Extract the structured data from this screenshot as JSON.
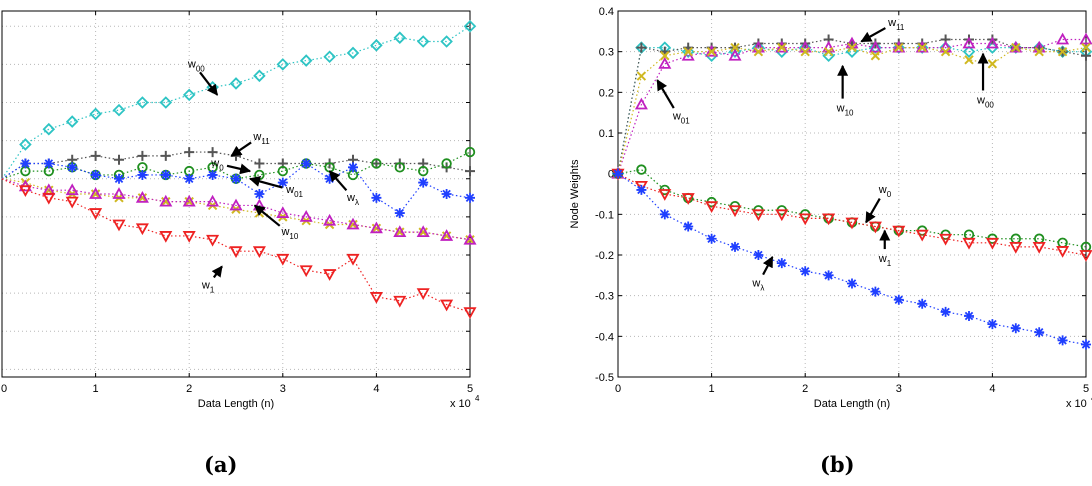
{
  "captions": [
    "(a)",
    "(b)"
  ],
  "colors": {
    "w00": "#2ec4c4",
    "w11": "#555555",
    "w0": "#1f8f1f",
    "w01": "#d0b820",
    "w10": "#c020c0",
    "wlambda": "#1f3fff",
    "w1": "#ee2222"
  },
  "chart_data": [
    {
      "type": "scatter",
      "xlabel": "Data Length (n)",
      "x_exponent": "x 10",
      "x_exponent_power": "4",
      "xlim": [
        0,
        5
      ],
      "xticks": [
        0,
        1,
        2,
        3,
        4,
        5
      ],
      "ylim": [
        -0.52,
        0.44
      ],
      "grid": true,
      "x": [
        0,
        0.25,
        0.5,
        0.75,
        1,
        1.25,
        1.5,
        1.75,
        2,
        2.25,
        2.5,
        2.75,
        3,
        3.25,
        3.5,
        3.75,
        4,
        4.25,
        4.5,
        4.75,
        5
      ],
      "series": [
        {
          "key": "w00",
          "marker": "diamond",
          "values": [
            0.0,
            0.09,
            0.13,
            0.15,
            0.17,
            0.18,
            0.2,
            0.2,
            0.22,
            0.24,
            0.25,
            0.27,
            0.3,
            0.31,
            0.32,
            0.33,
            0.35,
            0.37,
            0.36,
            0.36,
            0.4
          ]
        },
        {
          "key": "w11",
          "marker": "plus",
          "values": [
            0.0,
            0.04,
            0.04,
            0.05,
            0.06,
            0.05,
            0.06,
            0.06,
            0.07,
            0.07,
            0.06,
            0.04,
            0.04,
            0.04,
            0.04,
            0.05,
            0.04,
            0.04,
            0.04,
            0.03,
            0.02
          ]
        },
        {
          "key": "w0",
          "marker": "circle",
          "values": [
            0.0,
            0.02,
            0.02,
            0.03,
            0.01,
            0.01,
            0.03,
            0.01,
            0.02,
            0.03,
            0.0,
            0.01,
            0.02,
            0.04,
            0.03,
            0.01,
            0.04,
            0.03,
            0.02,
            0.04,
            0.07
          ]
        },
        {
          "key": "wlambda",
          "marker": "asterisk",
          "values": [
            0.0,
            0.04,
            0.04,
            0.03,
            0.01,
            0.0,
            0.01,
            0.01,
            0.0,
            0.01,
            0.0,
            -0.04,
            -0.01,
            0.04,
            0.0,
            0.03,
            -0.05,
            -0.09,
            -0.01,
            -0.04,
            -0.05
          ]
        },
        {
          "key": "w01",
          "marker": "x",
          "values": [
            0.0,
            -0.01,
            -0.03,
            -0.04,
            -0.04,
            -0.05,
            -0.05,
            -0.06,
            -0.06,
            -0.07,
            -0.08,
            -0.09,
            -0.1,
            -0.11,
            -0.12,
            -0.12,
            -0.13,
            -0.14,
            -0.14,
            -0.15,
            -0.16
          ]
        },
        {
          "key": "w10",
          "marker": "triangle-up",
          "values": [
            0.0,
            -0.02,
            -0.03,
            -0.03,
            -0.04,
            -0.04,
            -0.05,
            -0.06,
            -0.06,
            -0.06,
            -0.07,
            -0.07,
            -0.09,
            -0.1,
            -0.11,
            -0.12,
            -0.13,
            -0.14,
            -0.14,
            -0.15,
            -0.16
          ]
        },
        {
          "key": "w1",
          "marker": "triangle-down",
          "values": [
            0.0,
            -0.03,
            -0.05,
            -0.06,
            -0.09,
            -0.12,
            -0.13,
            -0.15,
            -0.15,
            -0.16,
            -0.19,
            -0.19,
            -0.21,
            -0.24,
            -0.25,
            -0.21,
            -0.31,
            -0.32,
            -0.3,
            -0.33,
            -0.35
          ]
        }
      ],
      "annotations": [
        {
          "label": "w",
          "sub": "00",
          "x": 2.3,
          "y": 0.22,
          "tx": 2.05,
          "ty": 0.3
        },
        {
          "label": "w",
          "sub": "11",
          "x": 2.45,
          "y": 0.06,
          "tx": 2.75,
          "ty": 0.11
        },
        {
          "label": "w",
          "sub": "0",
          "x": 2.65,
          "y": 0.02,
          "tx": 2.3,
          "ty": 0.04
        },
        {
          "label": "w",
          "sub": "01",
          "x": 2.65,
          "y": 0.0,
          "tx": 3.1,
          "ty": -0.03
        },
        {
          "label": "w",
          "sub": "λ",
          "x": 3.5,
          "y": 0.02,
          "tx": 3.75,
          "ty": -0.05
        },
        {
          "label": "w",
          "sub": "10",
          "x": 2.7,
          "y": -0.07,
          "tx": 3.05,
          "ty": -0.14
        },
        {
          "label": "w",
          "sub": "1",
          "x": 2.35,
          "y": -0.23,
          "tx": 2.2,
          "ty": -0.28
        }
      ]
    },
    {
      "type": "scatter",
      "xlabel": "Data Length (n)",
      "ylabel": "Node Weights",
      "x_exponent": "x 10",
      "x_exponent_power": "4",
      "xlim": [
        0,
        5
      ],
      "xticks": [
        0,
        1,
        2,
        3,
        4,
        5
      ],
      "ylim": [
        -0.5,
        0.4
      ],
      "yticks": [
        -0.5,
        -0.4,
        -0.3,
        -0.2,
        -0.1,
        0,
        0.1,
        0.2,
        0.3,
        0.4
      ],
      "ytick_labels": [
        "-0.5",
        "-0.4",
        "-0.3",
        "-0.2",
        "-0.1",
        "0",
        "0.1",
        "0.2",
        "0.3",
        "0.4"
      ],
      "grid": true,
      "x": [
        0,
        0.25,
        0.5,
        0.75,
        1,
        1.25,
        1.5,
        1.75,
        2,
        2.25,
        2.5,
        2.75,
        3,
        3.25,
        3.5,
        3.75,
        4,
        4.25,
        4.5,
        4.75,
        5
      ],
      "series": [
        {
          "key": "w00",
          "marker": "diamond",
          "values": [
            0.0,
            0.31,
            0.31,
            0.3,
            0.29,
            0.3,
            0.31,
            0.3,
            0.31,
            0.29,
            0.3,
            0.31,
            0.31,
            0.31,
            0.31,
            0.3,
            0.31,
            0.31,
            0.31,
            0.3,
            0.3
          ]
        },
        {
          "key": "w11",
          "marker": "plus",
          "values": [
            0.0,
            0.31,
            0.3,
            0.31,
            0.31,
            0.31,
            0.32,
            0.32,
            0.32,
            0.33,
            0.32,
            0.32,
            0.32,
            0.32,
            0.33,
            0.33,
            0.33,
            0.31,
            0.31,
            0.3,
            0.29
          ]
        },
        {
          "key": "w10",
          "marker": "triangle-up",
          "values": [
            0.0,
            0.17,
            0.27,
            0.29,
            0.3,
            0.29,
            0.31,
            0.31,
            0.31,
            0.31,
            0.32,
            0.31,
            0.31,
            0.31,
            0.31,
            0.32,
            0.32,
            0.31,
            0.31,
            0.33,
            0.33
          ]
        },
        {
          "key": "w01",
          "marker": "x",
          "values": [
            0.0,
            0.24,
            0.29,
            0.3,
            0.3,
            0.31,
            0.3,
            0.31,
            0.3,
            0.3,
            0.31,
            0.29,
            0.31,
            0.31,
            0.3,
            0.28,
            0.27,
            0.31,
            0.3,
            0.3,
            0.31
          ]
        },
        {
          "key": "w0",
          "marker": "circle",
          "values": [
            0.0,
            0.01,
            -0.04,
            -0.06,
            -0.07,
            -0.08,
            -0.09,
            -0.09,
            -0.1,
            -0.11,
            -0.12,
            -0.13,
            -0.14,
            -0.14,
            -0.15,
            -0.15,
            -0.16,
            -0.16,
            -0.16,
            -0.17,
            -0.18
          ]
        },
        {
          "key": "w1",
          "marker": "triangle-down",
          "values": [
            0.0,
            -0.03,
            -0.05,
            -0.06,
            -0.08,
            -0.09,
            -0.1,
            -0.1,
            -0.11,
            -0.11,
            -0.12,
            -0.13,
            -0.14,
            -0.15,
            -0.16,
            -0.17,
            -0.17,
            -0.18,
            -0.18,
            -0.19,
            -0.2
          ]
        },
        {
          "key": "wlambda",
          "marker": "asterisk",
          "values": [
            0.0,
            -0.04,
            -0.1,
            -0.13,
            -0.16,
            -0.18,
            -0.2,
            -0.22,
            -0.24,
            -0.25,
            -0.27,
            -0.29,
            -0.31,
            -0.32,
            -0.34,
            -0.35,
            -0.37,
            -0.38,
            -0.39,
            -0.41,
            -0.42
          ]
        }
      ],
      "annotations": [
        {
          "label": "w",
          "sub": "11",
          "x": 2.6,
          "y": 0.325,
          "tx": 2.95,
          "ty": 0.37
        },
        {
          "label": "w",
          "sub": "01",
          "x": 0.42,
          "y": 0.23,
          "tx": 0.65,
          "ty": 0.14
        },
        {
          "label": "w",
          "sub": "10",
          "x": 2.4,
          "y": 0.265,
          "tx": 2.4,
          "ty": 0.16
        },
        {
          "label": "w",
          "sub": "00",
          "x": 3.9,
          "y": 0.295,
          "tx": 3.9,
          "ty": 0.18
        },
        {
          "label": "w",
          "sub": "0",
          "x": 2.65,
          "y": -0.12,
          "tx": 2.85,
          "ty": -0.04
        },
        {
          "label": "w",
          "sub": "1",
          "x": 2.85,
          "y": -0.14,
          "tx": 2.85,
          "ty": -0.21
        },
        {
          "label": "w",
          "sub": "λ",
          "x": 1.65,
          "y": -0.205,
          "tx": 1.5,
          "ty": -0.27
        }
      ]
    }
  ]
}
